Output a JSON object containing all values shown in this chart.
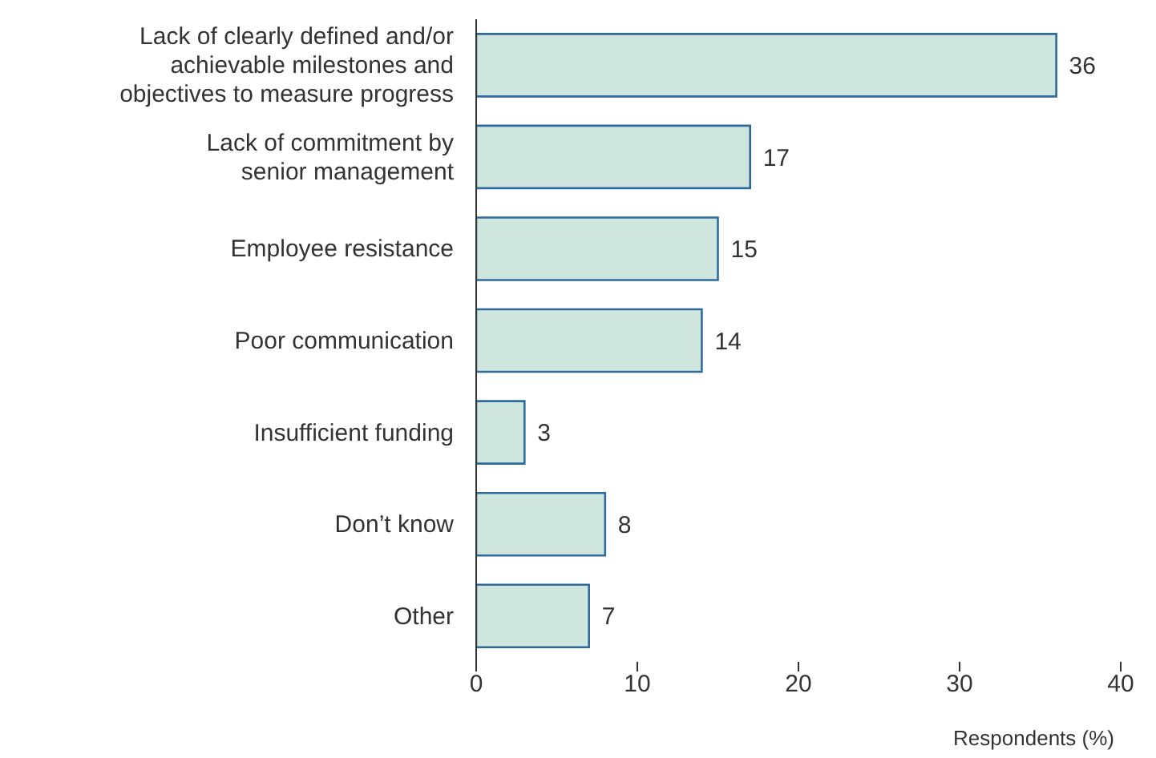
{
  "chart_data": {
    "type": "bar",
    "orientation": "horizontal",
    "xlabel": "Respondents (%)",
    "categories": [
      "Lack of clearly defined and/or\nachievable milestones and\nobjectives to measure progress",
      "Lack of commitment by\nsenior management",
      "Employee resistance",
      "Poor communication",
      "Insufficient funding",
      "Don’t know",
      "Other"
    ],
    "values": [
      36,
      17,
      15,
      14,
      3,
      8,
      7
    ],
    "color": "#cfe6df",
    "xlim": [
      0,
      40
    ],
    "xticks": [
      0,
      10,
      20,
      30,
      40
    ],
    "data_labels": true,
    "grid": false
  }
}
